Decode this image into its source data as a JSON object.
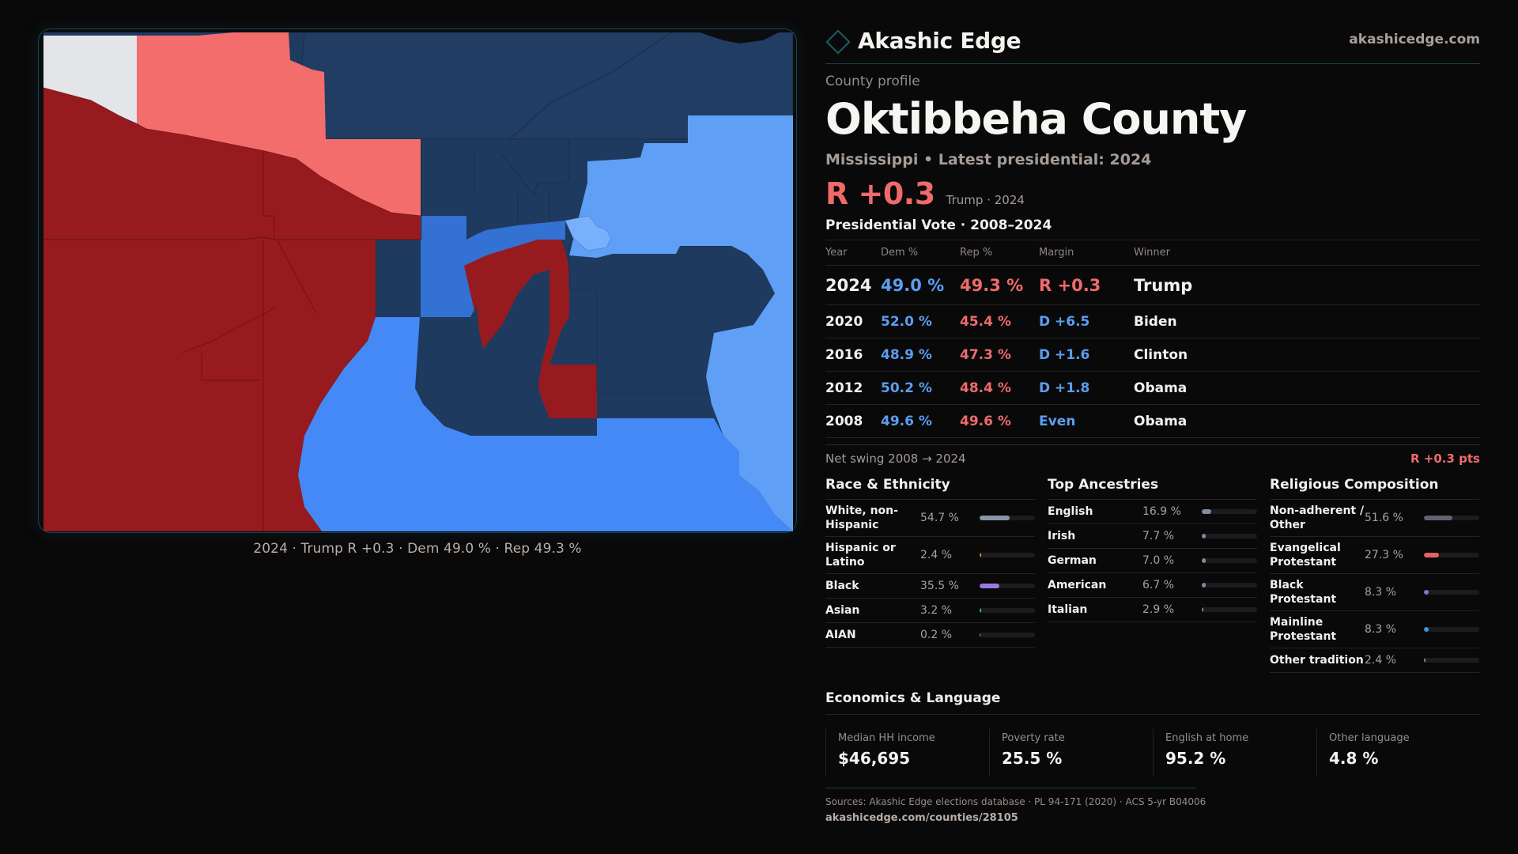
{
  "brand": {
    "name": "Akashic Edge",
    "url": "akashicedge.com",
    "logo_icon": "diamond-outline-icon",
    "accent": "#1b5d66"
  },
  "profile": {
    "eyebrow": "County profile",
    "title": "Oktibbeha County",
    "subtitle": "Mississippi • Latest presidential: 2024",
    "headline_margin": "R +0.3",
    "headline_meta": "Trump · 2024"
  },
  "map": {
    "caption": "2024 · Trump R +0.3 · Dem 49.0 % · Rep 49.3 %",
    "colors": {
      "safe_r": "#971b1e",
      "lean_r": "#f36d6d",
      "tossup": "#e4e5e8",
      "safe_d": "#1f3a5f",
      "likely_d": "#3371d3",
      "lean_d": "#4489f5",
      "tilt_d": "#5f9ff6",
      "slight_d": "#77b1fb"
    }
  },
  "votes": {
    "section_title": "Presidential Vote · 2008–2024",
    "headers": {
      "year": "Year",
      "dem": "Dem %",
      "rep": "Rep %",
      "margin": "Margin",
      "winner": "Winner"
    },
    "rows": [
      {
        "year": "2024",
        "dem": "49.0 %",
        "rep": "49.3 %",
        "margin": "R +0.3",
        "party": "r",
        "winner": "Trump"
      },
      {
        "year": "2020",
        "dem": "52.0 %",
        "rep": "45.4 %",
        "margin": "D +6.5",
        "party": "d",
        "winner": "Biden"
      },
      {
        "year": "2016",
        "dem": "48.9 %",
        "rep": "47.3 %",
        "margin": "D +1.6",
        "party": "d",
        "winner": "Clinton"
      },
      {
        "year": "2012",
        "dem": "50.2 %",
        "rep": "48.4 %",
        "margin": "D +1.8",
        "party": "d",
        "winner": "Obama"
      },
      {
        "year": "2008",
        "dem": "49.6 %",
        "rep": "49.6 %",
        "margin": "Even",
        "party": "d",
        "winner": "Obama"
      }
    ],
    "swing_label": "Net swing 2008 → 2024",
    "swing_value": "R +0.3 pts"
  },
  "race": {
    "title": "Race & Ethnicity",
    "rows": [
      {
        "label": "White, non-Hispanic",
        "value": "54.7 %",
        "pct": 54.7,
        "color": "#8895a8"
      },
      {
        "label": "Hispanic or Latino",
        "value": "2.4 %",
        "pct": 2.4,
        "color": "#d88a1a"
      },
      {
        "label": "Black",
        "value": "35.5 %",
        "pct": 35.5,
        "color": "#9a7ae0"
      },
      {
        "label": "Asian",
        "value": "3.2 %",
        "pct": 3.2,
        "color": "#2fbf86"
      },
      {
        "label": "AIAN",
        "value": "0.2 %",
        "pct": 0.2,
        "color": "#c7a37a"
      }
    ]
  },
  "ancestry": {
    "title": "Top Ancestries",
    "rows": [
      {
        "label": "English",
        "value": "16.9 %",
        "pct": 16.9,
        "color": "#7f8ba0"
      },
      {
        "label": "Irish",
        "value": "7.7 %",
        "pct": 7.7,
        "color": "#7f8ba0"
      },
      {
        "label": "German",
        "value": "7.0 %",
        "pct": 7.0,
        "color": "#7f8ba0"
      },
      {
        "label": "American",
        "value": "6.7 %",
        "pct": 6.7,
        "color": "#7f8ba0"
      },
      {
        "label": "Italian",
        "value": "2.9 %",
        "pct": 2.9,
        "color": "#7f8ba0"
      }
    ]
  },
  "religion": {
    "title": "Religious Composition",
    "rows": [
      {
        "label": "Non-adherent / Other",
        "value": "51.6 %",
        "pct": 51.6,
        "color": "#5f6470"
      },
      {
        "label": "Evangelical Protestant",
        "value": "27.3 %",
        "pct": 27.3,
        "color": "#e06464"
      },
      {
        "label": "Black Protestant",
        "value": "8.3 %",
        "pct": 8.3,
        "color": "#8d6fd8"
      },
      {
        "label": "Mainline Protestant",
        "value": "8.3 %",
        "pct": 8.3,
        "color": "#4b8de8"
      },
      {
        "label": "Other tradition",
        "value": "2.4 %",
        "pct": 2.4,
        "color": "#7f8ba0"
      }
    ]
  },
  "economics": {
    "title": "Economics & Language",
    "cells": [
      {
        "label": "Median HH income",
        "value": "$46,695"
      },
      {
        "label": "Poverty rate",
        "value": "25.5 %"
      },
      {
        "label": "English at home",
        "value": "95.2 %"
      },
      {
        "label": "Other language",
        "value": "4.8 %"
      }
    ]
  },
  "footer": {
    "sources": "Sources: Akashic Edge elections database · PL 94-171 (2020) · ACS 5-yr B04006",
    "url": "akashicedge.com/counties/28105"
  }
}
